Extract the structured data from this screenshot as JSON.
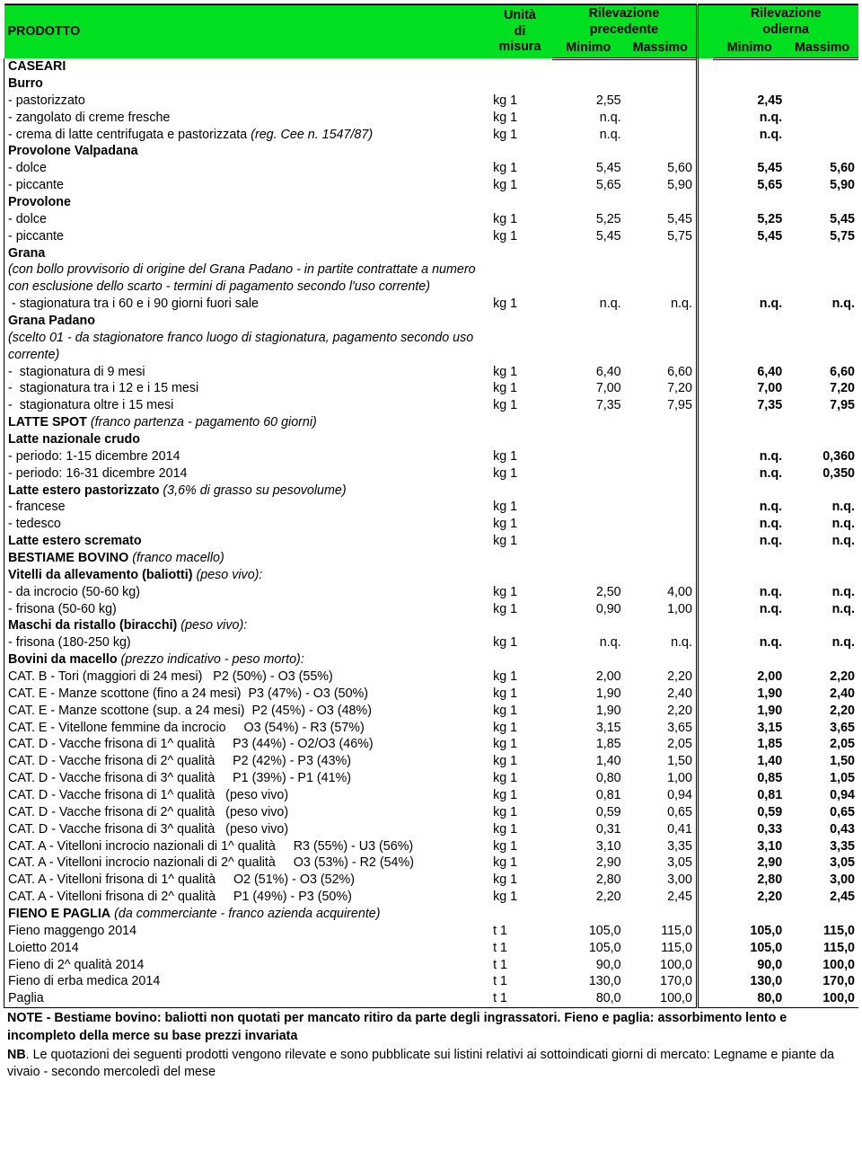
{
  "header": {
    "prodotto": "PRODOTTO",
    "unita": "Unità di misura",
    "prev": "Rilevazione precedente",
    "curr": "Rilevazione odierna",
    "min": "Minimo",
    "max": "Massimo"
  },
  "notes": {
    "note_label": "NOTE",
    "note_text": " - Bestiame bovino: baliotti non quotati per mancato ritiro da parte degli ingrassatori. Fieno e paglia: assorbimento lento e incompleto della merce su base prezzi invariata",
    "nb_label": "NB",
    "nb_text": ". Le quotazioni dei seguenti prodotti vengono rilevate e sono pubblicate sui listini relativi ai sottoindicati giorni di mercato: Legname e piante da vivaio - secondo mercoledì del mese"
  },
  "rows": [
    {
      "label": "CASEARI",
      "bold": true
    },
    {
      "label": "Burro",
      "bold": true
    },
    {
      "label": "- pastorizzato",
      "unit": "kg 1",
      "p_min": "2,55",
      "c_min": "2,45"
    },
    {
      "label": "- zangolato di creme fresche",
      "unit": "kg 1",
      "p_min": "n.q.",
      "c_min": "n.q."
    },
    {
      "label": "- crema di latte centrifugata e pastorizzata <span class=\"i\">(reg. Cee n. 1547/87)</span>",
      "unit": "kg 1",
      "p_min": "n.q.",
      "c_min": "n.q."
    },
    {
      "label": "Provolone Valpadana",
      "bold": true
    },
    {
      "label": "- dolce",
      "unit": "kg 1",
      "p_min": "5,45",
      "p_max": "5,60",
      "c_min": "5,45",
      "c_max": "5,60"
    },
    {
      "label": "- piccante",
      "unit": "kg 1",
      "p_min": "5,65",
      "p_max": "5,90",
      "c_min": "5,65",
      "c_max": "5,90"
    },
    {
      "label": "Provolone",
      "bold": true
    },
    {
      "label": "- dolce",
      "unit": "kg 1",
      "p_min": "5,25",
      "p_max": "5,45",
      "c_min": "5,25",
      "c_max": "5,45"
    },
    {
      "label": "- piccante",
      "unit": "kg 1",
      "p_min": "5,45",
      "p_max": "5,75",
      "c_min": "5,45",
      "c_max": "5,75"
    },
    {
      "label": "Grana",
      "bold": true
    },
    {
      "label": "<span class=\"i\">(con bollo provvisorio di origine del Grana Padano - in partite contrattate a numero con esclusione dello scarto - termini di pagamento secondo l'uso corrente)</span>"
    },
    {
      "label": "&nbsp;- stagionatura tra i 60 e i 90 giorni fuori sale",
      "unit": "kg 1",
      "p_min": "n.q.",
      "p_max": "n.q.",
      "c_min": "n.q.",
      "c_max": "n.q."
    },
    {
      "label": "Grana Padano",
      "bold": true
    },
    {
      "label": "<span class=\"i\">(scelto 01 - da stagionatore franco luogo di stagionatura, pagamento secondo uso corrente)</span>"
    },
    {
      "label": "- &nbsp;stagionatura di 9 mesi",
      "unit": "kg 1",
      "p_min": "6,40",
      "p_max": "6,60",
      "c_min": "6,40",
      "c_max": "6,60"
    },
    {
      "label": "- &nbsp;stagionatura tra i 12 e i 15 mesi",
      "unit": "kg 1",
      "p_min": "7,00",
      "p_max": "7,20",
      "c_min": "7,00",
      "c_max": "7,20"
    },
    {
      "label": "- &nbsp;stagionatura oltre i 15 mesi",
      "unit": "kg 1",
      "p_min": "7,35",
      "p_max": "7,95",
      "c_min": "7,35",
      "c_max": "7,95"
    },
    {
      "label": "<span class=\"b\">LATTE SPOT</span> <span class=\"i\">(franco partenza - pagamento 60 giorni)</span>"
    },
    {
      "label": "Latte nazionale crudo",
      "bold": true
    },
    {
      "label": "- periodo: 1-15 dicembre 2014",
      "unit": "kg 1",
      "c_min": "n.q.",
      "c_max": "0,360"
    },
    {
      "label": "- periodo: 16-31 dicembre 2014",
      "unit": "kg 1",
      "c_min": "n.q.",
      "c_max": "0,350"
    },
    {
      "label": "<span class=\"b\">Latte estero pastorizzato</span> <span class=\"i\">(3,6% di grasso su pesovolume)</span>"
    },
    {
      "label": "- francese",
      "unit": "kg 1",
      "c_min": "n.q.",
      "c_max": "n.q."
    },
    {
      "label": "- tedesco",
      "unit": "kg 1",
      "c_min": "n.q.",
      "c_max": "n.q."
    },
    {
      "label": "Latte estero scremato",
      "bold": true,
      "unit": "kg 1",
      "c_min": "n.q.",
      "c_max": "n.q."
    },
    {
      "label": "<span class=\"b\">BESTIAME BOVINO</span> <span class=\"i\">(franco macello)</span>"
    },
    {
      "label": "<span class=\"b\">Vitelli da allevamento (baliotti)</span> <span class=\"i\">(peso vivo):</span>"
    },
    {
      "label": "- da incrocio (50-60 kg)",
      "unit": "kg 1",
      "p_min": "2,50",
      "p_max": "4,00",
      "c_min": "n.q.",
      "c_max": "n.q."
    },
    {
      "label": "- frisona (50-60 kg)",
      "unit": "kg 1",
      "p_min": "0,90",
      "p_max": "1,00",
      "c_min": "n.q.",
      "c_max": "n.q."
    },
    {
      "label": "<span class=\"b\">Maschi da ristallo (biracchi)</span> <span class=\"i\">(peso vivo):</span>"
    },
    {
      "label": "- frisona (180-250 kg)",
      "unit": "kg 1",
      "p_min": "n.q.",
      "p_max": "n.q.",
      "c_min": "n.q.",
      "c_max": "n.q."
    },
    {
      "label": "<span class=\"b\">Bovini da macello</span> <span class=\"i\">(prezzo indicativo - peso morto):</span>"
    },
    {
      "label": "CAT. B - Tori (maggiori di 24 mesi)&nbsp;&nbsp; P2 (50%) - O3 (55%)",
      "unit": "kg 1",
      "p_min": "2,00",
      "p_max": "2,20",
      "c_min": "2,00",
      "c_max": "2,20"
    },
    {
      "label": "CAT. E - Manze scottone (fino a 24 mesi)&nbsp; P3 (47%) - O3 (50%)",
      "unit": "kg 1",
      "p_min": "1,90",
      "p_max": "2,40",
      "c_min": "1,90",
      "c_max": "2,40"
    },
    {
      "label": "CAT. E - Manze scottone (sup. a 24 mesi)&nbsp; P2 (45%) - O3 (48%)",
      "unit": "kg 1",
      "p_min": "1,90",
      "p_max": "2,20",
      "c_min": "1,90",
      "c_max": "2,20"
    },
    {
      "label": "CAT. E - Vitellone femmine da incrocio&nbsp;&nbsp;&nbsp;&nbsp; O3 (54%) - R3 (57%)",
      "unit": "kg 1",
      "p_min": "3,15",
      "p_max": "3,65",
      "c_min": "3,15",
      "c_max": "3,65"
    },
    {
      "label": "CAT. D - Vacche frisona di 1^ qualità&nbsp;&nbsp;&nbsp;&nbsp; P3 (44%) - O2/O3 (46%)",
      "unit": "kg 1",
      "p_min": "1,85",
      "p_max": "2,05",
      "c_min": "1,85",
      "c_max": "2,05"
    },
    {
      "label": "CAT. D - Vacche frisona di 2^ qualità&nbsp;&nbsp;&nbsp;&nbsp; P2 (42%) - P3 (43%)",
      "unit": "kg 1",
      "p_min": "1,40",
      "p_max": "1,50",
      "c_min": "1,40",
      "c_max": "1,50"
    },
    {
      "label": "CAT. D - Vacche frisona di 3^ qualità&nbsp;&nbsp;&nbsp;&nbsp; P1 (39%) - P1 (41%)",
      "unit": "kg 1",
      "p_min": "0,80",
      "p_max": "1,00",
      "c_min": "0,85",
      "c_max": "1,05"
    },
    {
      "label": "CAT. D - Vacche frisona di 1^ qualità&nbsp;&nbsp; (peso vivo)",
      "unit": "kg 1",
      "p_min": "0,81",
      "p_max": "0,94",
      "c_min": "0,81",
      "c_max": "0,94"
    },
    {
      "label": "CAT. D - Vacche frisona di 2^ qualità&nbsp;&nbsp; (peso vivo)",
      "unit": "kg 1",
      "p_min": "0,59",
      "p_max": "0,65",
      "c_min": "0,59",
      "c_max": "0,65"
    },
    {
      "label": "CAT. D - Vacche frisona di 3^ qualità&nbsp;&nbsp; (peso vivo)",
      "unit": "kg 1",
      "p_min": "0,31",
      "p_max": "0,41",
      "c_min": "0,33",
      "c_max": "0,43"
    },
    {
      "label": "CAT. A - Vitelloni incrocio nazionali di 1^ qualità&nbsp;&nbsp;&nbsp;&nbsp; R3 (55%) - U3 (56%)",
      "unit": "kg 1",
      "p_min": "3,10",
      "p_max": "3,35",
      "c_min": "3,10",
      "c_max": "3,35"
    },
    {
      "label": "CAT. A - Vitelloni incrocio nazionali di 2^ qualità&nbsp;&nbsp;&nbsp;&nbsp; O3 (53%) - R2 (54%)",
      "unit": "kg 1",
      "p_min": "2,90",
      "p_max": "3,05",
      "c_min": "2,90",
      "c_max": "3,05"
    },
    {
      "label": "CAT. A - Vitelloni frisona di 1^ qualità&nbsp;&nbsp;&nbsp;&nbsp; O2 (51%) - O3 (52%)",
      "unit": "kg 1",
      "p_min": "2,80",
      "p_max": "3,00",
      "c_min": "2,80",
      "c_max": "3,00"
    },
    {
      "label": "CAT. A - Vitelloni frisona di 2^ qualità&nbsp;&nbsp;&nbsp;&nbsp; P1 (49%) - P3 (50%)",
      "unit": "kg 1",
      "p_min": "2,20",
      "p_max": "2,45",
      "c_min": "2,20",
      "c_max": "2,45"
    },
    {
      "label": "<span class=\"b\">FIENO E PAGLIA</span> <span class=\"i\">(da commerciante - franco azienda acquirente)</span>"
    },
    {
      "label": "Fieno maggengo 2014",
      "unit": "t 1",
      "p_min": "105,0",
      "p_max": "115,0",
      "c_min": "105,0",
      "c_max": "115,0"
    },
    {
      "label": "Loietto 2014",
      "unit": "t 1",
      "p_min": "105,0",
      "p_max": "115,0",
      "c_min": "105,0",
      "c_max": "115,0"
    },
    {
      "label": "Fieno di 2^ qualità 2014",
      "unit": "t 1",
      "p_min": "90,0",
      "p_max": "100,0",
      "c_min": "90,0",
      "c_max": "100,0"
    },
    {
      "label": "Fieno di erba medica 2014",
      "unit": "t 1",
      "p_min": "130,0",
      "p_max": "170,0",
      "c_min": "130,0",
      "c_max": "170,0"
    },
    {
      "label": "Paglia",
      "unit": "t 1",
      "p_min": "80,0",
      "p_max": "100,0",
      "c_min": "80,0",
      "c_max": "100,0",
      "last": true
    }
  ]
}
